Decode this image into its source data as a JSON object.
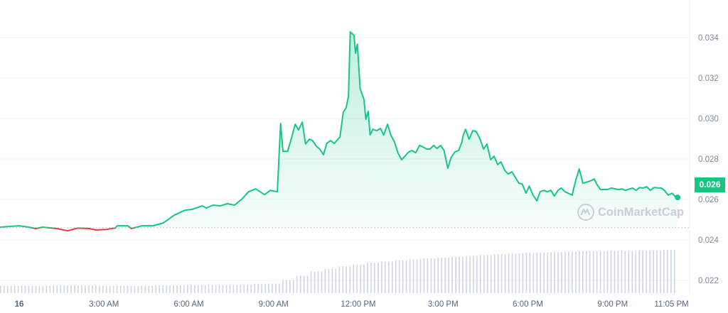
{
  "chart_data": {
    "type": "area",
    "title": "",
    "xlabel": "",
    "ylabel": "",
    "ylim": [
      0.0216,
      0.0356
    ],
    "y_ticks": [
      "0.034",
      "0.032",
      "0.030",
      "0.028",
      "0.026",
      "0.024",
      "0.022"
    ],
    "x_ticks": [
      {
        "label": "16",
        "time": "16 00:00"
      },
      {
        "label": "3:00 AM",
        "time": "16 03:00"
      },
      {
        "label": "6:00 AM",
        "time": "16 06:00"
      },
      {
        "label": "9:00 AM",
        "time": "16 09:00"
      },
      {
        "label": "12:00 PM",
        "time": "16 12:00"
      },
      {
        "label": "3:00 PM",
        "time": "16 15:00"
      },
      {
        "label": "6:00 PM",
        "time": "16 18:00"
      },
      {
        "label": "9:00 PM",
        "time": "16 21:00"
      },
      {
        "label": "11:05 PM",
        "time": "16 23:05"
      }
    ],
    "grid": true,
    "baseline_price": 0.0246,
    "current_price_label": "0.026",
    "colors": {
      "up": "#16c784",
      "down": "#ea3943",
      "volume": "#cfd6e4",
      "grid": "#f1f2f5",
      "axis_text": "#808a9d"
    },
    "watermark": "CoinMarketCap",
    "price": [
      [
        "15 23:19",
        0.02463
      ],
      [
        "16 00:00",
        0.0247
      ],
      [
        "16 00:20",
        0.02463
      ],
      [
        "16 00:35",
        0.02456
      ],
      [
        "16 00:50",
        0.02463
      ],
      [
        "16 01:20",
        0.02456
      ],
      [
        "16 01:43",
        0.02445
      ],
      [
        "16 02:05",
        0.02459
      ],
      [
        "16 02:28",
        0.02456
      ],
      [
        "16 02:43",
        0.02449
      ],
      [
        "16 03:06",
        0.02452
      ],
      [
        "16 03:24",
        0.02459
      ],
      [
        "16 03:28",
        0.0247
      ],
      [
        "16 03:51",
        0.0247
      ],
      [
        "16 03:58",
        0.02456
      ],
      [
        "16 04:21",
        0.0247
      ],
      [
        "16 04:44",
        0.0247
      ],
      [
        "16 05:06",
        0.02484
      ],
      [
        "16 05:29",
        0.02522
      ],
      [
        "16 05:52",
        0.02547
      ],
      [
        "16 06:07",
        0.02551
      ],
      [
        "16 06:29",
        0.02568
      ],
      [
        "16 06:37",
        0.02558
      ],
      [
        "16 06:52",
        0.02572
      ],
      [
        "16 07:07",
        0.02568
      ],
      [
        "16 07:22",
        0.02579
      ],
      [
        "16 07:37",
        0.02572
      ],
      [
        "16 07:52",
        0.026
      ],
      [
        "16 08:07",
        0.02638
      ],
      [
        "16 08:22",
        0.02652
      ],
      [
        "16 08:41",
        0.02624
      ],
      [
        "16 08:53",
        0.02645
      ],
      [
        "16 09:08",
        0.02638
      ],
      [
        "16 09:15",
        0.02975
      ],
      [
        "16 09:20",
        0.02838
      ],
      [
        "16 09:30",
        0.02838
      ],
      [
        "16 09:38",
        0.02902
      ],
      [
        "16 09:46",
        0.02972
      ],
      [
        "16 09:53",
        0.02944
      ],
      [
        "16 10:01",
        0.02982
      ],
      [
        "16 10:08",
        0.02874
      ],
      [
        "16 10:16",
        0.02898
      ],
      [
        "16 10:23",
        0.02891
      ],
      [
        "16 10:31",
        0.02863
      ],
      [
        "16 10:38",
        0.02849
      ],
      [
        "16 10:46",
        0.02821
      ],
      [
        "16 10:53",
        0.02877
      ],
      [
        "16 11:01",
        0.02891
      ],
      [
        "16 11:09",
        0.02877
      ],
      [
        "16 11:21",
        0.02909
      ],
      [
        "16 11:28",
        0.03031
      ],
      [
        "16 11:34",
        0.03053
      ],
      [
        "16 11:39",
        0.03109
      ],
      [
        "16 11:43",
        0.03428
      ],
      [
        "16 11:51",
        0.03411
      ],
      [
        "16 11:54",
        0.03323
      ],
      [
        "16 11:58",
        0.03368
      ],
      [
        "16 12:04",
        0.03147
      ],
      [
        "16 12:12",
        0.03095
      ],
      [
        "16 12:16",
        0.02996
      ],
      [
        "16 12:21",
        0.03035
      ],
      [
        "16 12:25",
        0.02919
      ],
      [
        "16 12:31",
        0.02947
      ],
      [
        "16 12:39",
        0.0294
      ],
      [
        "16 12:47",
        0.02951
      ],
      [
        "16 12:54",
        0.02919
      ],
      [
        "16 13:02",
        0.02972
      ],
      [
        "16 13:09",
        0.02919
      ],
      [
        "16 13:17",
        0.02884
      ],
      [
        "16 13:24",
        0.02831
      ],
      [
        "16 13:32",
        0.02796
      ],
      [
        "16 13:39",
        0.02814
      ],
      [
        "16 13:47",
        0.02835
      ],
      [
        "16 13:54",
        0.02842
      ],
      [
        "16 14:02",
        0.02831
      ],
      [
        "16 14:10",
        0.02867
      ],
      [
        "16 14:17",
        0.0286
      ],
      [
        "16 14:25",
        0.02849
      ],
      [
        "16 14:32",
        0.02849
      ],
      [
        "16 14:40",
        0.02867
      ],
      [
        "16 14:47",
        0.02852
      ],
      [
        "16 14:55",
        0.02867
      ],
      [
        "16 15:02",
        0.02842
      ],
      [
        "16 15:10",
        0.02754
      ],
      [
        "16 15:17",
        0.02807
      ],
      [
        "16 15:25",
        0.02835
      ],
      [
        "16 15:33",
        0.02842
      ],
      [
        "16 15:40",
        0.02884
      ],
      [
        "16 15:43",
        0.02919
      ],
      [
        "16 15:48",
        0.02947
      ],
      [
        "16 15:55",
        0.02898
      ],
      [
        "16 16:03",
        0.0294
      ],
      [
        "16 16:10",
        0.02937
      ],
      [
        "16 16:18",
        0.02902
      ],
      [
        "16 16:26",
        0.02849
      ],
      [
        "16 16:33",
        0.02874
      ],
      [
        "16 16:41",
        0.02796
      ],
      [
        "16 16:48",
        0.02814
      ],
      [
        "16 16:56",
        0.02772
      ],
      [
        "16 17:03",
        0.02786
      ],
      [
        "16 17:11",
        0.02744
      ],
      [
        "16 17:18",
        0.02726
      ],
      [
        "16 17:26",
        0.02737
      ],
      [
        "16 17:41",
        0.0268
      ],
      [
        "16 17:48",
        0.02677
      ],
      [
        "16 17:56",
        0.02631
      ],
      [
        "16 18:03",
        0.02666
      ],
      [
        "16 18:11",
        0.02621
      ],
      [
        "16 18:19",
        0.02593
      ],
      [
        "16 18:26",
        0.02638
      ],
      [
        "16 18:34",
        0.02645
      ],
      [
        "16 18:41",
        0.02638
      ],
      [
        "16 18:49",
        0.02645
      ],
      [
        "16 18:56",
        0.02617
      ],
      [
        "16 19:04",
        0.02645
      ],
      [
        "16 19:11",
        0.02656
      ],
      [
        "16 19:19",
        0.02638
      ],
      [
        "16 19:34",
        0.02621
      ],
      [
        "16 19:42",
        0.02698
      ],
      [
        "16 19:49",
        0.02751
      ],
      [
        "16 19:57",
        0.0268
      ],
      [
        "16 20:12",
        0.02691
      ],
      [
        "16 20:21",
        0.02701
      ],
      [
        "16 20:27",
        0.02673
      ],
      [
        "16 20:34",
        0.02649
      ],
      [
        "16 20:49",
        0.02649
      ],
      [
        "16 20:57",
        0.02656
      ],
      [
        "16 21:12",
        0.02649
      ],
      [
        "16 21:20",
        0.02652
      ],
      [
        "16 21:27",
        0.02645
      ],
      [
        "16 21:42",
        0.02656
      ],
      [
        "16 21:50",
        0.02645
      ],
      [
        "16 21:57",
        0.02659
      ],
      [
        "16 22:05",
        0.02656
      ],
      [
        "16 22:12",
        0.02663
      ],
      [
        "16 22:20",
        0.02645
      ],
      [
        "16 22:28",
        0.02659
      ],
      [
        "16 22:43",
        0.02656
      ],
      [
        "16 22:50",
        0.02645
      ],
      [
        "16 22:58",
        0.02621
      ],
      [
        "16 23:06",
        0.02631
      ],
      [
        "16 23:13",
        0.02614
      ],
      [
        "16 23:18",
        0.0261
      ]
    ],
    "volume_relative": [
      17,
      17,
      17,
      17,
      18,
      18,
      18,
      17,
      17,
      17,
      17,
      18,
      18,
      19,
      19,
      19,
      19,
      20,
      21,
      22,
      30,
      40,
      50,
      56,
      62,
      66,
      70,
      73,
      76,
      78,
      80,
      82,
      84,
      86,
      88,
      90,
      92,
      93,
      94,
      95,
      96,
      97,
      97,
      98,
      98,
      99,
      99,
      100
    ]
  }
}
